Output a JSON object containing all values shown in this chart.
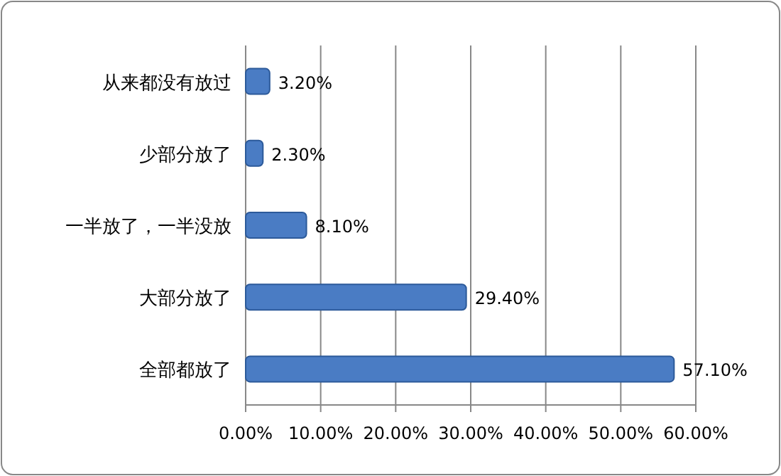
{
  "chart_data": {
    "type": "bar",
    "orientation": "horizontal",
    "categories": [
      "从来都没有放过",
      "少部分放了",
      "一半放了，一半没放",
      "大部分放了",
      "全部都放了"
    ],
    "values": [
      3.2,
      2.3,
      8.1,
      29.4,
      57.1
    ],
    "value_labels": [
      "3.20%",
      "2.30%",
      "8.10%",
      "29.40%",
      "57.10%"
    ],
    "color": "#4a7cc4",
    "xlim": [
      0,
      60
    ],
    "xticks": [
      {
        "value": 0,
        "label": "0.00%"
      },
      {
        "value": 10,
        "label": "10.00%"
      },
      {
        "value": 20,
        "label": "20.00%"
      },
      {
        "value": 30,
        "label": "30.00%"
      },
      {
        "value": 40,
        "label": "40.00%"
      },
      {
        "value": 50,
        "label": "50.00%"
      },
      {
        "value": 60,
        "label": "60.00%"
      }
    ],
    "grid": "x"
  }
}
